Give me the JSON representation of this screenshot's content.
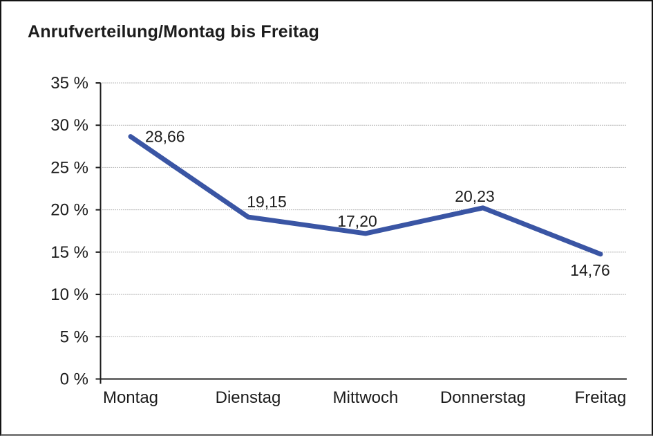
{
  "chart_data": {
    "type": "line",
    "title": "Anrufverteilung/Montag bis Freitag",
    "categories": [
      "Montag",
      "Dienstag",
      "Mittwoch",
      "Donnerstag",
      "Freitag"
    ],
    "values": [
      28.66,
      19.15,
      17.2,
      20.23,
      14.76
    ],
    "value_labels": [
      "28,66",
      "19,15",
      "17,20",
      "20,23",
      "14,76"
    ],
    "xlabel": "",
    "ylabel": "",
    "y_ticks": [
      "0 %",
      "5 %",
      "10 %",
      "15 %",
      "20 %",
      "25 %",
      "30 %",
      "35 %"
    ],
    "y_step": 5,
    "ylim": [
      0,
      35
    ],
    "grid": "horizontal-dotted",
    "legend": "none",
    "line_color": "#3A55A4",
    "text_color": "#1c1c1c"
  }
}
